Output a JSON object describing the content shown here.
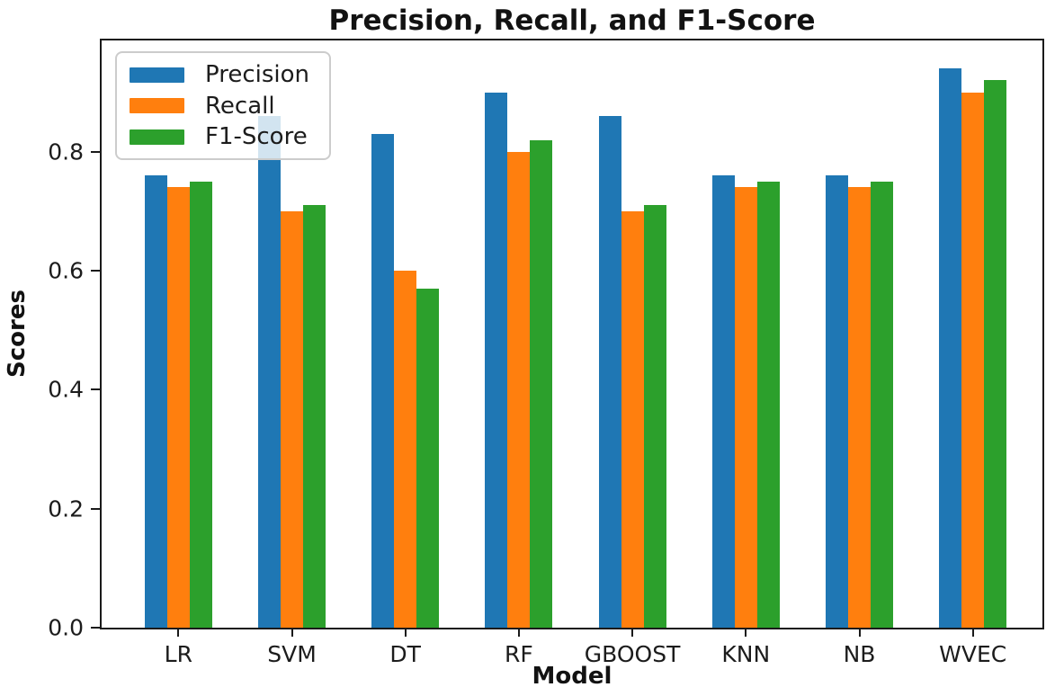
{
  "chart_data": {
    "type": "bar",
    "title": "Precision, Recall, and F1-Score",
    "xlabel": "Model",
    "ylabel": "Scores",
    "categories": [
      "LR",
      "SVM",
      "DT",
      "RF",
      "GBOOST",
      "KNN",
      "NB",
      "WVEC"
    ],
    "series": [
      {
        "name": "Precision",
        "color": "#1f77b4",
        "values": [
          0.76,
          0.86,
          0.83,
          0.9,
          0.86,
          0.76,
          0.76,
          0.94
        ]
      },
      {
        "name": "Recall",
        "color": "#ff7f0e",
        "values": [
          0.74,
          0.7,
          0.6,
          0.8,
          0.7,
          0.74,
          0.74,
          0.9
        ]
      },
      {
        "name": "F1-Score",
        "color": "#2ca02c",
        "values": [
          0.75,
          0.71,
          0.57,
          0.82,
          0.71,
          0.75,
          0.75,
          0.92
        ]
      }
    ],
    "yticks": [
      0.0,
      0.2,
      0.4,
      0.6,
      0.8
    ],
    "ytick_labels": [
      "0.0",
      "0.2",
      "0.4",
      "0.6",
      "0.8"
    ],
    "ylim": [
      0,
      0.987
    ],
    "legend_position": "upper-left",
    "grid": false,
    "colors": {
      "spine": "#1a1a1a",
      "text": "#1c1c1c",
      "legend_border": "#cccccc",
      "background": "#ffffff"
    }
  }
}
